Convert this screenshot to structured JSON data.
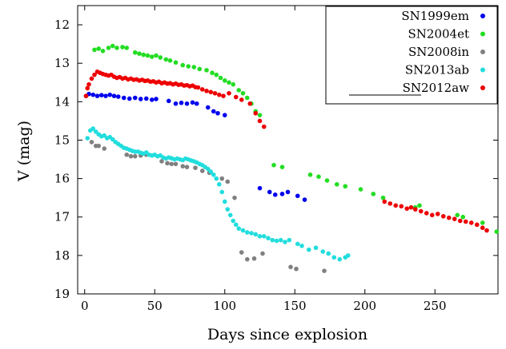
{
  "chart_data": {
    "type": "scatter",
    "xlabel": "Days since explosion",
    "ylabel": "V (mag)",
    "xlim": [
      -5,
      295
    ],
    "ylim": [
      19,
      11.5
    ],
    "y_inverted": true,
    "xticks": [
      0,
      50,
      100,
      150,
      200,
      250
    ],
    "yticks": [
      12,
      13,
      14,
      15,
      16,
      17,
      18,
      19
    ],
    "grid": false,
    "legend_position": "top-right",
    "series": [
      {
        "name": "SN1999em",
        "color": "#0000ee",
        "points": [
          [
            1,
            13.85
          ],
          [
            3,
            13.8
          ],
          [
            6,
            13.82
          ],
          [
            9,
            13.85
          ],
          [
            12,
            13.83
          ],
          [
            15,
            13.85
          ],
          [
            18,
            13.82
          ],
          [
            21,
            13.85
          ],
          [
            24,
            13.87
          ],
          [
            28,
            13.9
          ],
          [
            32,
            13.92
          ],
          [
            36,
            13.9
          ],
          [
            40,
            13.93
          ],
          [
            44,
            13.92
          ],
          [
            48,
            13.95
          ],
          [
            51,
            13.93
          ],
          [
            60,
            13.98
          ],
          [
            65,
            14.05
          ],
          [
            69,
            14.03
          ],
          [
            73,
            14.05
          ],
          [
            77,
            14.02
          ],
          [
            80,
            14.05
          ],
          [
            88,
            14.15
          ],
          [
            92,
            14.25
          ],
          [
            95,
            14.3
          ],
          [
            100,
            14.35
          ],
          [
            125,
            16.25
          ],
          [
            132,
            16.35
          ],
          [
            136,
            16.42
          ],
          [
            141,
            16.4
          ],
          [
            145,
            16.35
          ],
          [
            152,
            16.45
          ],
          [
            157,
            16.55
          ]
        ]
      },
      {
        "name": "SN2004et",
        "color": "#22dd22",
        "points": [
          [
            7,
            12.65
          ],
          [
            10,
            12.62
          ],
          [
            13,
            12.68
          ],
          [
            17,
            12.6
          ],
          [
            20,
            12.55
          ],
          [
            23,
            12.6
          ],
          [
            27,
            12.58
          ],
          [
            30,
            12.6
          ],
          [
            36,
            12.72
          ],
          [
            39,
            12.75
          ],
          [
            42,
            12.78
          ],
          [
            45,
            12.8
          ],
          [
            48,
            12.83
          ],
          [
            51,
            12.8
          ],
          [
            54,
            12.85
          ],
          [
            58,
            12.9
          ],
          [
            61,
            12.93
          ],
          [
            65,
            12.98
          ],
          [
            70,
            13.05
          ],
          [
            74,
            13.08
          ],
          [
            78,
            13.1
          ],
          [
            82,
            13.15
          ],
          [
            87,
            13.18
          ],
          [
            91,
            13.25
          ],
          [
            94,
            13.3
          ],
          [
            97,
            13.38
          ],
          [
            100,
            13.45
          ],
          [
            103,
            13.5
          ],
          [
            106,
            13.55
          ],
          [
            110,
            13.7
          ],
          [
            113,
            13.78
          ],
          [
            116,
            13.9
          ],
          [
            119,
            14.05
          ],
          [
            122,
            14.25
          ],
          [
            125,
            14.35
          ],
          [
            135,
            15.65
          ],
          [
            141,
            15.7
          ],
          [
            161,
            15.9
          ],
          [
            167,
            15.95
          ],
          [
            173,
            16.05
          ],
          [
            180,
            16.15
          ],
          [
            186,
            16.2
          ],
          [
            197,
            16.28
          ],
          [
            206,
            16.4
          ],
          [
            213,
            16.5
          ],
          [
            236,
            16.75
          ],
          [
            239,
            16.7
          ],
          [
            266,
            16.95
          ],
          [
            270,
            17.0
          ],
          [
            284,
            17.15
          ],
          [
            294,
            17.38
          ]
        ]
      },
      {
        "name": "SN2008in",
        "color": "#808080",
        "points": [
          [
            5,
            15.05
          ],
          [
            8,
            15.15
          ],
          [
            10,
            15.15
          ],
          [
            14,
            15.22
          ],
          [
            30,
            15.38
          ],
          [
            33,
            15.42
          ],
          [
            36,
            15.42
          ],
          [
            40,
            15.4
          ],
          [
            44,
            15.38
          ],
          [
            55,
            15.55
          ],
          [
            59,
            15.6
          ],
          [
            62,
            15.62
          ],
          [
            65,
            15.62
          ],
          [
            70,
            15.68
          ],
          [
            73,
            15.7
          ],
          [
            79,
            15.72
          ],
          [
            84,
            15.8
          ],
          [
            89,
            15.85
          ],
          [
            98,
            16.0
          ],
          [
            102,
            16.08
          ],
          [
            107,
            16.5
          ],
          [
            112,
            17.92
          ],
          [
            116,
            18.1
          ],
          [
            121,
            18.08
          ],
          [
            127,
            17.95
          ],
          [
            147,
            18.3
          ],
          [
            151,
            18.35
          ],
          [
            171,
            18.4
          ]
        ]
      },
      {
        "name": "SN2013ab",
        "color": "#22dddd",
        "points": [
          [
            2,
            14.95
          ],
          [
            4,
            14.75
          ],
          [
            6,
            14.7
          ],
          [
            8,
            14.78
          ],
          [
            10,
            14.85
          ],
          [
            12,
            14.9
          ],
          [
            14,
            14.88
          ],
          [
            16,
            14.95
          ],
          [
            18,
            14.92
          ],
          [
            20,
            14.98
          ],
          [
            22,
            15.05
          ],
          [
            24,
            15.1
          ],
          [
            26,
            15.15
          ],
          [
            28,
            15.2
          ],
          [
            30,
            15.22
          ],
          [
            32,
            15.25
          ],
          [
            34,
            15.28
          ],
          [
            36,
            15.3
          ],
          [
            38,
            15.3
          ],
          [
            40,
            15.33
          ],
          [
            42,
            15.35
          ],
          [
            44,
            15.32
          ],
          [
            46,
            15.38
          ],
          [
            48,
            15.4
          ],
          [
            50,
            15.38
          ],
          [
            52,
            15.42
          ],
          [
            54,
            15.4
          ],
          [
            56,
            15.45
          ],
          [
            58,
            15.48
          ],
          [
            60,
            15.45
          ],
          [
            62,
            15.47
          ],
          [
            64,
            15.5
          ],
          [
            66,
            15.48
          ],
          [
            68,
            15.5
          ],
          [
            70,
            15.52
          ],
          [
            72,
            15.48
          ],
          [
            74,
            15.5
          ],
          [
            76,
            15.53
          ],
          [
            78,
            15.55
          ],
          [
            80,
            15.58
          ],
          [
            82,
            15.62
          ],
          [
            84,
            15.65
          ],
          [
            86,
            15.7
          ],
          [
            88,
            15.75
          ],
          [
            90,
            15.82
          ],
          [
            92,
            15.9
          ],
          [
            94,
            16.0
          ],
          [
            96,
            16.15
          ],
          [
            98,
            16.35
          ],
          [
            100,
            16.6
          ],
          [
            102,
            16.8
          ],
          [
            104,
            16.95
          ],
          [
            106,
            17.1
          ],
          [
            108,
            17.2
          ],
          [
            110,
            17.3
          ],
          [
            113,
            17.35
          ],
          [
            116,
            17.4
          ],
          [
            119,
            17.42
          ],
          [
            122,
            17.45
          ],
          [
            125,
            17.5
          ],
          [
            128,
            17.5
          ],
          [
            131,
            17.55
          ],
          [
            134,
            17.6
          ],
          [
            137,
            17.62
          ],
          [
            140,
            17.6
          ],
          [
            143,
            17.65
          ],
          [
            146,
            17.6
          ],
          [
            152,
            17.7
          ],
          [
            155,
            17.75
          ],
          [
            160,
            17.85
          ],
          [
            165,
            17.8
          ],
          [
            170,
            17.9
          ],
          [
            174,
            17.95
          ],
          [
            178,
            18.05
          ],
          [
            182,
            18.1
          ],
          [
            186,
            18.05
          ],
          [
            188,
            18.0
          ]
        ]
      },
      {
        "name": "SN2012aw",
        "color": "#ee0000",
        "points": [
          [
            1,
            13.85
          ],
          [
            2,
            13.65
          ],
          [
            3,
            13.55
          ],
          [
            5,
            13.4
          ],
          [
            7,
            13.3
          ],
          [
            9,
            13.22
          ],
          [
            11,
            13.25
          ],
          [
            13,
            13.28
          ],
          [
            15,
            13.3
          ],
          [
            17,
            13.32
          ],
          [
            19,
            13.3
          ],
          [
            21,
            13.35
          ],
          [
            23,
            13.38
          ],
          [
            25,
            13.36
          ],
          [
            27,
            13.4
          ],
          [
            29,
            13.38
          ],
          [
            31,
            13.42
          ],
          [
            33,
            13.4
          ],
          [
            35,
            13.43
          ],
          [
            37,
            13.42
          ],
          [
            39,
            13.45
          ],
          [
            41,
            13.43
          ],
          [
            43,
            13.46
          ],
          [
            45,
            13.45
          ],
          [
            47,
            13.48
          ],
          [
            49,
            13.47
          ],
          [
            51,
            13.5
          ],
          [
            53,
            13.48
          ],
          [
            55,
            13.52
          ],
          [
            57,
            13.5
          ],
          [
            59,
            13.53
          ],
          [
            61,
            13.52
          ],
          [
            63,
            13.55
          ],
          [
            65,
            13.53
          ],
          [
            67,
            13.56
          ],
          [
            69,
            13.55
          ],
          [
            71,
            13.58
          ],
          [
            73,
            13.57
          ],
          [
            75,
            13.6
          ],
          [
            77,
            13.58
          ],
          [
            79,
            13.62
          ],
          [
            81,
            13.63
          ],
          [
            84,
            13.68
          ],
          [
            87,
            13.72
          ],
          [
            90,
            13.75
          ],
          [
            93,
            13.78
          ],
          [
            96,
            13.82
          ],
          [
            99,
            13.85
          ],
          [
            103,
            13.78
          ],
          [
            108,
            13.88
          ],
          [
            112,
            13.95
          ],
          [
            118,
            14.05
          ],
          [
            122,
            14.3
          ],
          [
            125,
            14.5
          ],
          [
            128,
            14.65
          ],
          [
            214,
            16.6
          ],
          [
            218,
            16.65
          ],
          [
            222,
            16.7
          ],
          [
            226,
            16.72
          ],
          [
            230,
            16.78
          ],
          [
            233,
            16.75
          ],
          [
            236,
            16.8
          ],
          [
            240,
            16.85
          ],
          [
            244,
            16.9
          ],
          [
            248,
            16.95
          ],
          [
            252,
            16.92
          ],
          [
            256,
            16.98
          ],
          [
            260,
            17.02
          ],
          [
            264,
            17.05
          ],
          [
            268,
            17.1
          ],
          [
            272,
            17.12
          ],
          [
            276,
            17.15
          ],
          [
            280,
            17.2
          ],
          [
            284,
            17.28
          ],
          [
            287,
            17.35
          ]
        ]
      }
    ]
  }
}
